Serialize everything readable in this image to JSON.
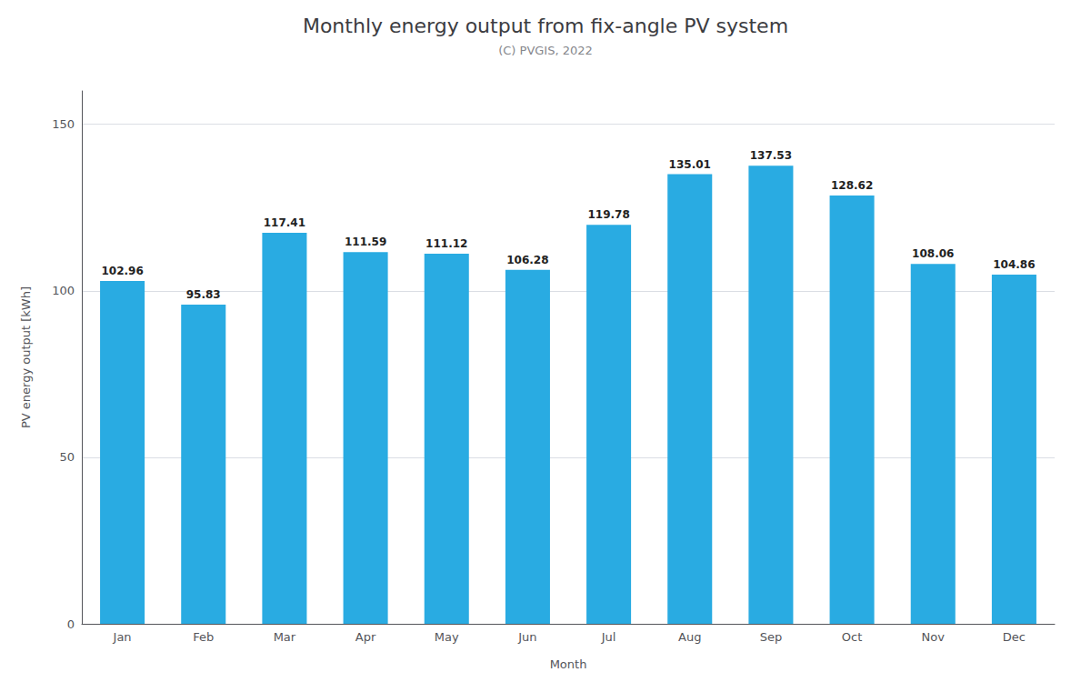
{
  "chart_data": {
    "type": "bar",
    "title": "Monthly energy output from fix-angle PV system",
    "subtitle": "(C) PVGIS, 2022",
    "xlabel": "Month",
    "ylabel": "PV energy output [kWh]",
    "categories": [
      "Jan",
      "Feb",
      "Mar",
      "Apr",
      "May",
      "Jun",
      "Jul",
      "Aug",
      "Sep",
      "Oct",
      "Nov",
      "Dec"
    ],
    "values": [
      102.96,
      95.83,
      117.41,
      111.59,
      111.12,
      106.28,
      119.78,
      135.01,
      137.53,
      128.62,
      108.06,
      104.86
    ],
    "color": "#29ABE2",
    "ylim": [
      0,
      160
    ],
    "yticks": [
      0,
      50,
      100,
      150
    ],
    "grid": true,
    "data_labels": true
  }
}
